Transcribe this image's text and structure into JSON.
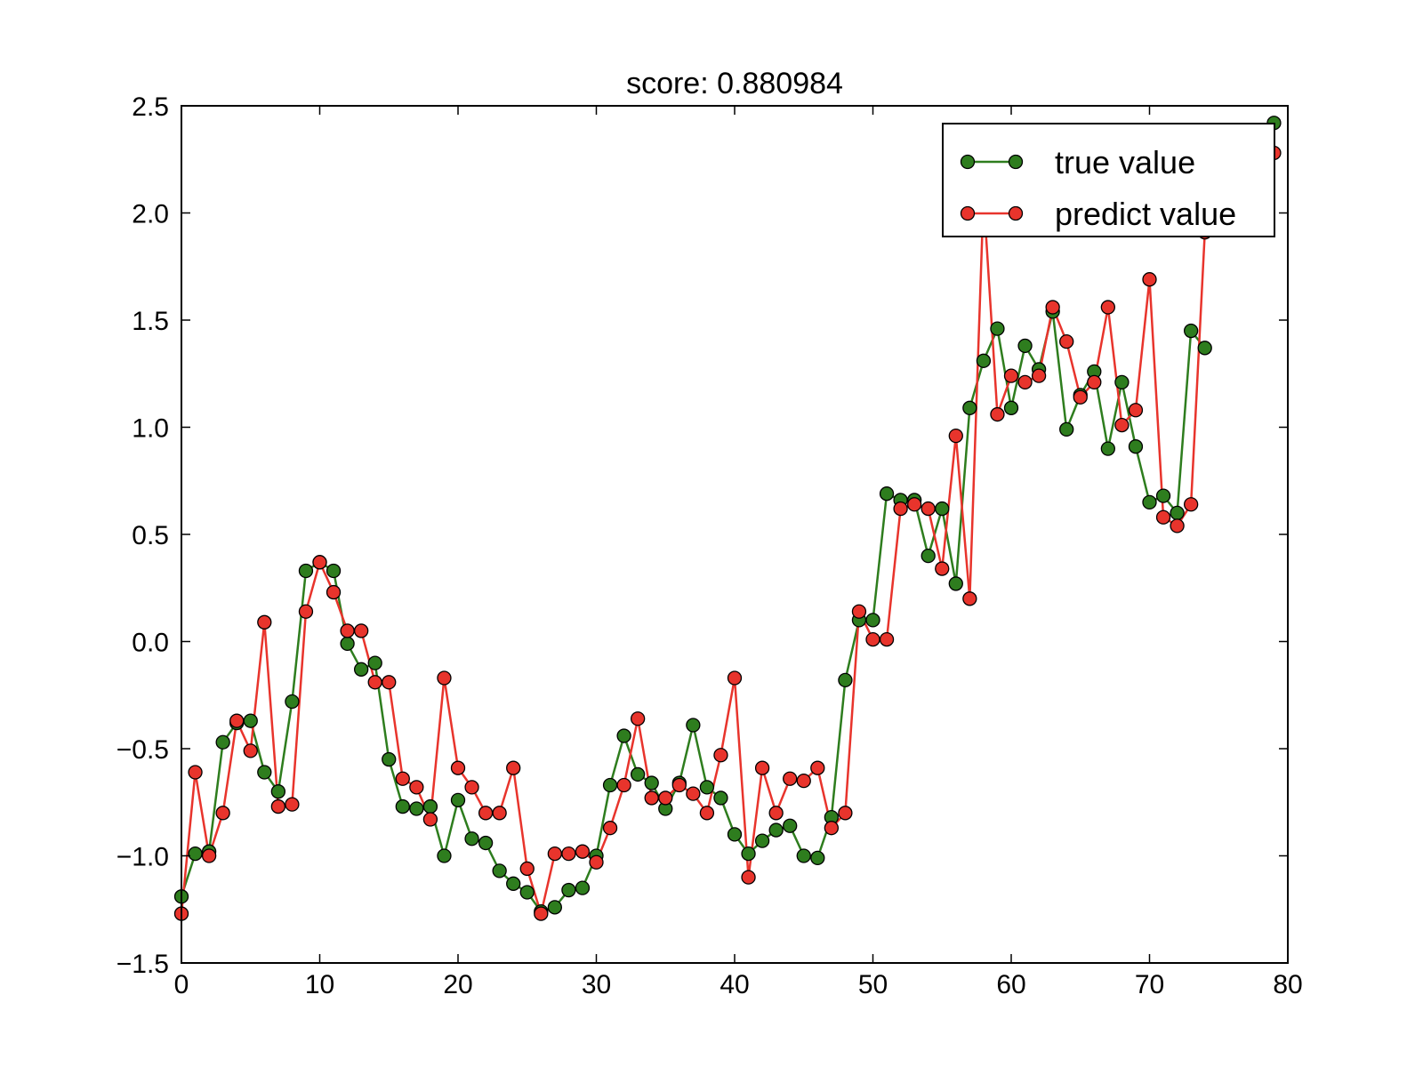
{
  "chart_data": {
    "type": "line",
    "title": "score: 0.880984",
    "xlabel": "",
    "ylabel": "",
    "xlim": [
      0,
      80
    ],
    "ylim": [
      -1.5,
      2.5
    ],
    "xticks": [
      0,
      10,
      20,
      30,
      40,
      50,
      60,
      70,
      80
    ],
    "xtick_labels": [
      "0",
      "10",
      "20",
      "30",
      "40",
      "50",
      "60",
      "70",
      "80"
    ],
    "yticks": [
      2.5,
      2.0,
      1.5,
      1.0,
      0.5,
      0.0,
      -0.5,
      -1.0,
      -1.5
    ],
    "ytick_labels": [
      "2.5",
      "2.0",
      "1.5",
      "1.0",
      "0.5",
      "0.0",
      "−0.5",
      "−1.0",
      "−1.5"
    ],
    "grid": false,
    "legend_position": "top-right",
    "x": [
      0,
      1,
      2,
      3,
      4,
      5,
      6,
      7,
      8,
      9,
      10,
      11,
      12,
      13,
      14,
      15,
      16,
      17,
      18,
      19,
      20,
      21,
      22,
      23,
      24,
      25,
      26,
      27,
      28,
      29,
      30,
      31,
      32,
      33,
      34,
      35,
      36,
      37,
      38,
      39,
      40,
      41,
      42,
      43,
      44,
      45,
      46,
      47,
      48,
      49,
      50,
      51,
      52,
      53,
      54,
      55,
      56,
      57,
      58,
      59,
      60,
      61,
      62,
      63,
      64,
      65,
      66,
      67,
      68,
      69,
      70,
      71,
      72,
      73,
      74,
      75,
      76,
      77,
      78,
      79
    ],
    "series": [
      {
        "name": "true value",
        "color": "#2e7d1e",
        "values": [
          -1.19,
          -0.99,
          -0.98,
          -0.47,
          -0.38,
          -0.37,
          -0.61,
          -0.7,
          -0.28,
          0.33,
          0.37,
          0.33,
          -0.01,
          -0.13,
          -0.1,
          -0.55,
          -0.77,
          -0.78,
          -0.77,
          -1.0,
          -0.74,
          -0.92,
          -0.94,
          -1.07,
          -1.13,
          -1.17,
          -1.26,
          -1.24,
          -1.16,
          -1.15,
          -1.0,
          -0.67,
          -0.44,
          -0.62,
          -0.66,
          -0.78,
          -0.66,
          -0.39,
          -0.68,
          -0.73,
          -0.9,
          -0.99,
          -0.93,
          -0.88,
          -0.86,
          -1.0,
          -1.01,
          -0.82,
          -0.18,
          0.1,
          0.1,
          0.69,
          0.66,
          0.66,
          0.4,
          0.62,
          0.27,
          1.09,
          1.31,
          1.46,
          1.09,
          1.38,
          1.27,
          1.54,
          0.99,
          1.15,
          1.26,
          0.9,
          1.21,
          0.91,
          0.65,
          0.68,
          0.6,
          1.45,
          1.37,
          null,
          null,
          null,
          null,
          2.42
        ]
      },
      {
        "name": "predict value",
        "color": "#e8342c",
        "values": [
          -1.27,
          -0.61,
          -1.0,
          -0.8,
          -0.37,
          -0.51,
          0.09,
          -0.77,
          -0.76,
          0.14,
          0.37,
          0.23,
          0.05,
          0.05,
          -0.19,
          -0.19,
          -0.64,
          -0.68,
          -0.83,
          -0.17,
          -0.59,
          -0.68,
          -0.8,
          -0.8,
          -0.59,
          -1.06,
          -1.27,
          -0.99,
          -0.99,
          -0.98,
          -1.03,
          -0.87,
          -0.67,
          -0.36,
          -0.73,
          -0.73,
          -0.67,
          -0.71,
          -0.8,
          -0.53,
          -0.17,
          -1.1,
          -0.59,
          -0.8,
          -0.64,
          -0.65,
          -0.59,
          -0.87,
          -0.8,
          0.14,
          0.01,
          0.01,
          0.62,
          0.64,
          0.62,
          0.34,
          0.96,
          0.2,
          2.08,
          1.06,
          1.24,
          1.21,
          1.24,
          1.56,
          1.4,
          1.14,
          1.21,
          1.56,
          1.01,
          1.08,
          1.69,
          0.58,
          0.54,
          0.64,
          1.91,
          null,
          null,
          null,
          null,
          2.28
        ]
      }
    ]
  }
}
